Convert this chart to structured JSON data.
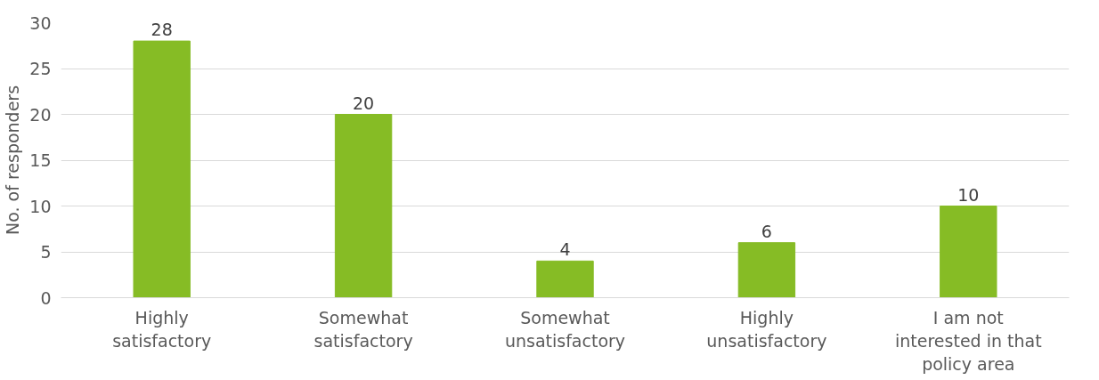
{
  "chart_data": {
    "type": "bar",
    "ylabel": "No. of responders",
    "categories": [
      "Highly satisfactory",
      "Somewhat satisfactory",
      "Somewhat unsatisfactory",
      "Highly unsatisfactory",
      "I am not interested in that policy area"
    ],
    "values": [
      28,
      20,
      4,
      6,
      10
    ],
    "color": "#86bc25",
    "ylim": [
      0,
      30
    ],
    "yticks": [
      0,
      5,
      10,
      15,
      20,
      25,
      30
    ],
    "grid": "y",
    "data_labels": true
  }
}
